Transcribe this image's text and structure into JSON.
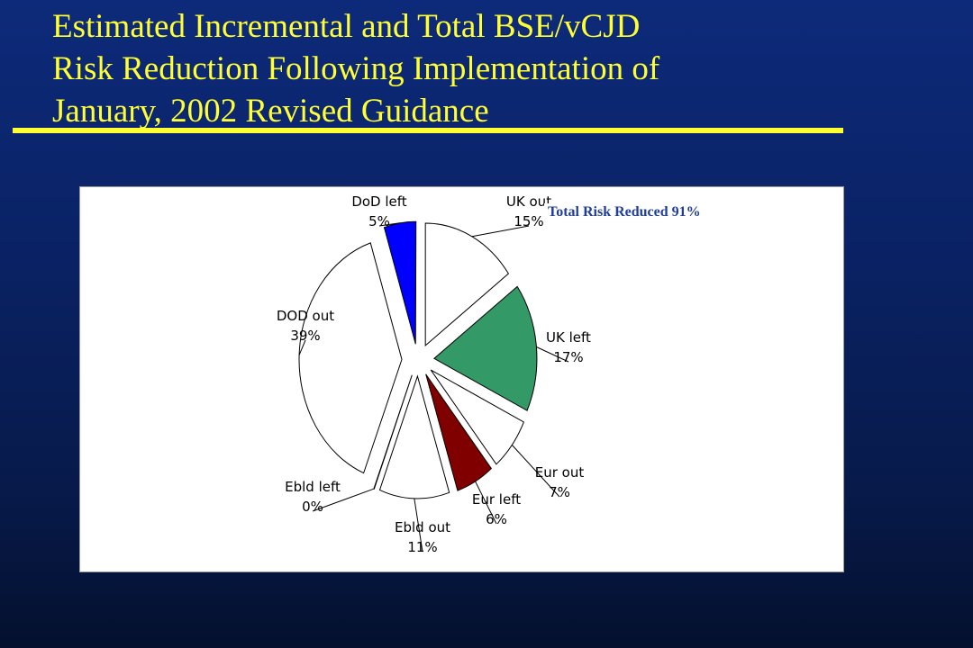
{
  "title": {
    "line1": "Estimated Incremental and Total BSE/vCJD",
    "line2": "Risk Reduction Following Implementation of",
    "line3": "January, 2002 Revised Guidance"
  },
  "colors": {
    "title": "#ffff33",
    "annotation": "#1f3d99",
    "slide_background": "#0a2264"
  },
  "chart_data": {
    "type": "pie",
    "annotation": "Total Risk Reduced  91%",
    "slices": [
      {
        "name": "UK out",
        "label_top": "UK out",
        "label_bottom": "15%",
        "value": 15,
        "color": "#ffffff"
      },
      {
        "name": "UK left",
        "label_top": "UK left",
        "label_bottom": "17%",
        "value": 17,
        "color": "#339966"
      },
      {
        "name": "Eur out",
        "label_top": "Eur out",
        "label_bottom": "7%",
        "value": 7,
        "color": "#ffffff"
      },
      {
        "name": "Eur left",
        "label_top": "Eur left",
        "label_bottom": "6%",
        "value": 6,
        "color": "#800000"
      },
      {
        "name": "Ebld out",
        "label_top": "Ebld out",
        "label_bottom": "11%",
        "value": 11,
        "color": "#ffffff"
      },
      {
        "name": "Ebld left",
        "label_top": "Ebld left",
        "label_bottom": "0%",
        "value": 0,
        "color": "#ffffff"
      },
      {
        "name": "DOD out",
        "label_top": "DOD out",
        "label_bottom": "39%",
        "value": 39,
        "color": "#ffffff"
      },
      {
        "name": "DoD left",
        "label_top": "DoD left",
        "label_bottom": "5%",
        "value": 5,
        "color": "#0000ff"
      }
    ]
  }
}
